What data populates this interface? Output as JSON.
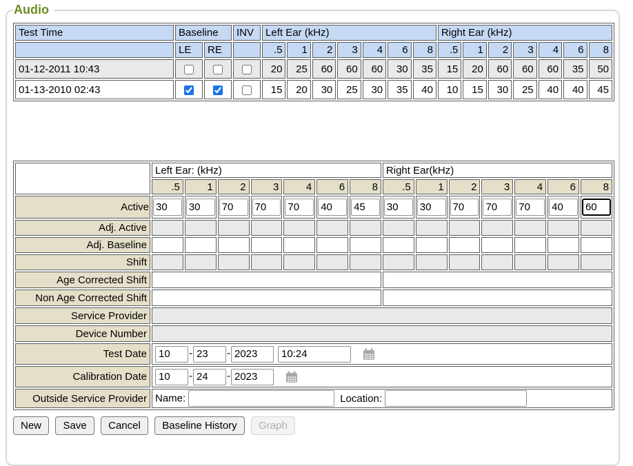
{
  "section": {
    "legend": "Audio"
  },
  "history_table": {
    "col1_header": "Test Time",
    "baseline_header": "Baseline",
    "inv_header": "INV",
    "left_ear_header": "Left Ear (kHz)",
    "right_ear_header": "Right Ear (kHz)",
    "baseline_subheaders": [
      "LE",
      "RE"
    ],
    "freq_labels": [
      ".5",
      "1",
      "2",
      "3",
      "4",
      "6",
      "8"
    ],
    "rows": [
      {
        "test_time": "01-12-2011 10:43",
        "baseline_le_checked": false,
        "baseline_re_checked": false,
        "inv_checked": false,
        "left_ear": [
          "20",
          "25",
          "60",
          "60",
          "60",
          "30",
          "35"
        ],
        "right_ear": [
          "15",
          "20",
          "60",
          "60",
          "60",
          "35",
          "50"
        ]
      },
      {
        "test_time": "01-13-2010 02:43",
        "baseline_le_checked": true,
        "baseline_re_checked": true,
        "inv_checked": false,
        "left_ear": [
          "15",
          "20",
          "30",
          "25",
          "30",
          "35",
          "40"
        ],
        "right_ear": [
          "10",
          "15",
          "30",
          "25",
          "40",
          "40",
          "45"
        ]
      }
    ]
  },
  "detail_table": {
    "left_ear_header": "Left Ear: (kHz)",
    "right_ear_header": "Right Ear(kHz)",
    "freq_labels": [
      ".5",
      "1",
      "2",
      "3",
      "4",
      "6",
      "8"
    ],
    "active_row": {
      "label": "Active",
      "left_ear_values": [
        "30",
        "30",
        "70",
        "70",
        "70",
        "40",
        "45"
      ],
      "right_ear_values": [
        "30",
        "30",
        "70",
        "70",
        "70",
        "40",
        "60"
      ],
      "focused_input": "right-ear-8"
    },
    "adj_active_label": "Adj. Active",
    "adj_baseline_label": "Adj. Baseline",
    "shift_label": "Shift",
    "age_corrected_shift_label": "Age Corrected Shift",
    "non_age_corrected_shift_label": "Non Age Corrected Shift",
    "service_provider_label": "Service Provider",
    "device_number_label": "Device Number",
    "test_date": {
      "label": "Test Date",
      "month": "10",
      "day": "23",
      "year": "2023",
      "time": "10:24"
    },
    "calibration_date": {
      "label": "Calibration Date",
      "month": "10",
      "day": "24",
      "year": "2023"
    },
    "outside_service_provider": {
      "label": "Outside Service Provider",
      "name_label": "Name:",
      "name_value": "",
      "location_label": "Location:",
      "location_value": ""
    }
  },
  "buttons": {
    "new": "New",
    "save": "Save",
    "cancel": "Cancel",
    "baseline_history": "Baseline History",
    "graph": "Graph",
    "graph_disabled": true
  },
  "colors": {
    "header_blue": "#c6d9f4",
    "label_tan": "#e5dfc9",
    "row_gray": "#e9e9e9",
    "checkbox_accent": "#1a73e8",
    "legend_green": "#6b8e23"
  }
}
